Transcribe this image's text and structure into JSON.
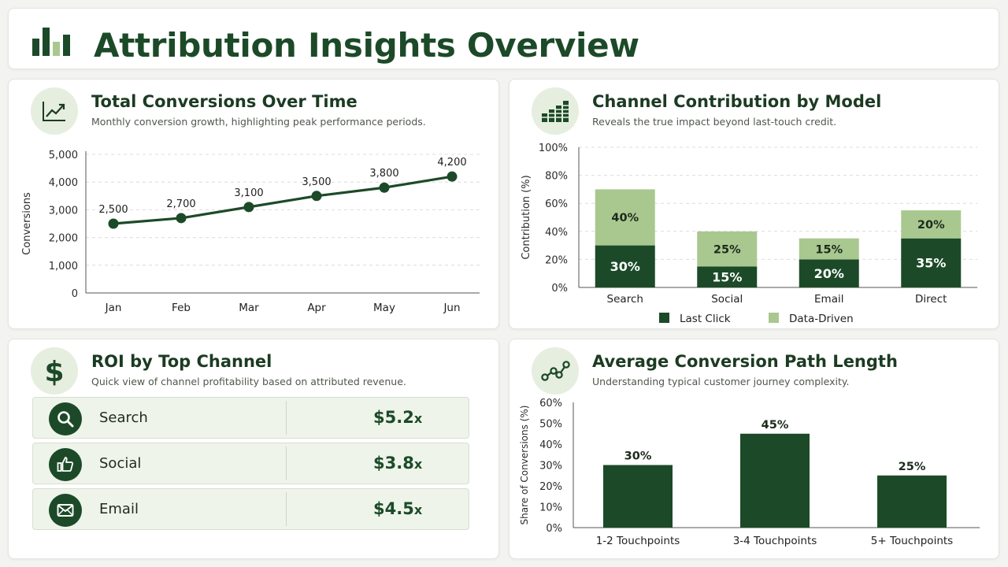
{
  "header": {
    "title": "Attribution Insights Overview",
    "icon": "bar-chart-icon"
  },
  "colors": {
    "dark_green": "#1c4a28",
    "light_green": "#a9c890",
    "panel": "#eef4ea"
  },
  "line_card": {
    "title": "Total Conversions Over Time",
    "subtitle": "Monthly conversion growth, highlighting peak performance periods.",
    "icon": "trend-line-icon"
  },
  "bar_card": {
    "title": "Channel Contribution by Model",
    "subtitle": "Reveals the true impact beyond last-touch credit.",
    "icon": "bar-chart-icon"
  },
  "roi_card": {
    "title": "ROI by Top Channel",
    "subtitle": "Quick view of channel profitability based on attributed revenue.",
    "icon": "dollar-icon",
    "rows": [
      {
        "name": "Search",
        "value": "$5.2",
        "suffix": "x",
        "icon": "search-icon"
      },
      {
        "name": "Social",
        "value": "$3.8",
        "suffix": "x",
        "icon": "thumbs-up-icon"
      },
      {
        "name": "Email",
        "value": "$4.5",
        "suffix": "x",
        "icon": "envelope-icon"
      }
    ]
  },
  "path_card": {
    "title": "Average Conversion Path Length",
    "subtitle": "Understanding typical customer journey complexity.",
    "icon": "path-nodes-icon"
  },
  "chart_data": [
    {
      "type": "line",
      "x": [
        "Jan",
        "Feb",
        "Mar",
        "Apr",
        "May",
        "Jun"
      ],
      "values": [
        2500,
        2700,
        3100,
        3500,
        3800,
        4200
      ],
      "data_labels": [
        "2,500",
        "2,700",
        "3,100",
        "3,500",
        "3,800",
        "4,200"
      ],
      "ylabel": "Conversions",
      "ylim": [
        0,
        5000
      ],
      "yticks": [
        0,
        1000,
        2000,
        3000,
        4000,
        5000
      ],
      "ytick_labels": [
        "0",
        "1,000",
        "2,000",
        "3,000",
        "4,000",
        "5,000"
      ],
      "grid": true,
      "color": "#1c4a28"
    },
    {
      "type": "bar",
      "stacked": true,
      "categories": [
        "Search",
        "Social",
        "Email",
        "Direct"
      ],
      "series": [
        {
          "name": "Last Click",
          "values": [
            30,
            15,
            20,
            35
          ],
          "color": "#1c4a28"
        },
        {
          "name": "Data-Driven",
          "values": [
            40,
            25,
            15,
            20
          ],
          "color": "#a9c890"
        }
      ],
      "ylabel": "Contribution (%)",
      "ylim": [
        0,
        100
      ],
      "yticks": [
        0,
        20,
        40,
        60,
        80,
        100
      ],
      "ytick_labels": [
        "0%",
        "20%",
        "40%",
        "60%",
        "80%",
        "100%"
      ],
      "grid": true,
      "legend": "bottom"
    },
    {
      "type": "bar",
      "categories": [
        "1-2 Touchpoints",
        "3-4 Touchpoints",
        "5+ Touchpoints"
      ],
      "values": [
        30,
        45,
        25
      ],
      "data_labels": [
        "30%",
        "45%",
        "25%"
      ],
      "ylabel": "Share of Conversions (%)",
      "ylim": [
        0,
        60
      ],
      "yticks": [
        0,
        10,
        20,
        30,
        40,
        50,
        60
      ],
      "ytick_labels": [
        "0%",
        "10%",
        "20%",
        "30%",
        "40%",
        "50%",
        "60%"
      ],
      "grid": false,
      "color": "#1c4a28"
    }
  ]
}
